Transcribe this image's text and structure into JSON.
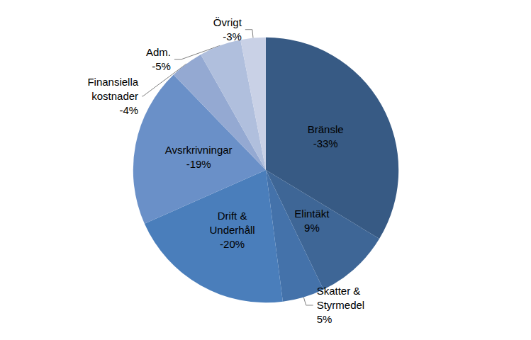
{
  "chart_data": {
    "type": "pie",
    "categories": [
      "Bränsle",
      "Elintäkt",
      "Skatter &\nStyrmedel",
      "Drift &\nUnderhåll",
      "Avsrkrivningar",
      "Finansiella\nkostnader",
      "Adm.",
      "Övrigt"
    ],
    "values": [
      -33,
      9,
      5,
      -20,
      -19,
      -4,
      -5,
      -3
    ],
    "value_labels": [
      "-33%",
      "9%",
      "5%",
      "-20%",
      "-19%",
      "-4%",
      "-5%",
      "-3%"
    ],
    "colors": [
      "#375a84",
      "#3e6696",
      "#4472aa",
      "#4a7ebb",
      "#6a90c8",
      "#94a9d2",
      "#b0bfdd",
      "#c9d1e6"
    ],
    "data_labels": true
  }
}
